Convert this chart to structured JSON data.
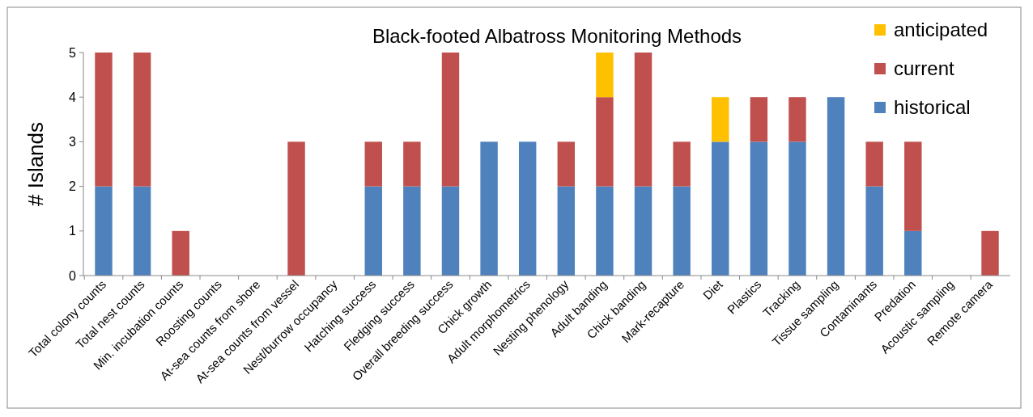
{
  "chart_data": {
    "type": "bar",
    "title": "Black-footed Albatross Monitoring Methods",
    "ylabel": "# Islands",
    "stacked": true,
    "legend": "top right",
    "categories": [
      "Total colony counts",
      "Total nest counts",
      "Min. incubation counts",
      "Roosting counts",
      "At-sea counts from shore",
      "At-sea counts from vessel",
      "Nest/burrow occupancy",
      "Hatching success",
      "Fledging success",
      "Overall breeding success",
      "Chick growth",
      "Adult morphometrics",
      "Nesting phenology",
      "Adult banding",
      "Chick banding",
      "Mark-recapture",
      "Diet",
      "Plastics",
      "Tracking",
      "Tissue sampling",
      "Contaminants",
      "Predation",
      "Acoustic sampling",
      "Remote camera"
    ],
    "series": [
      {
        "name": "historical",
        "color": "#4f81bd",
        "values": [
          2,
          2,
          0,
          0,
          0,
          0,
          0,
          2,
          2,
          2,
          3,
          3,
          2,
          2,
          2,
          2,
          3,
          3,
          3,
          4,
          2,
          1,
          0,
          0
        ]
      },
      {
        "name": "current",
        "color": "#c0504d",
        "values": [
          3,
          3,
          1,
          0,
          0,
          3,
          0,
          1,
          1,
          3,
          0,
          0,
          1,
          2,
          3,
          1,
          0,
          1,
          1,
          0,
          1,
          2,
          0,
          1
        ]
      },
      {
        "name": "anticipated",
        "color": "#ffc000",
        "values": [
          0,
          0,
          0,
          0,
          0,
          0,
          0,
          0,
          0,
          0,
          0,
          0,
          0,
          1,
          0,
          0,
          1,
          0,
          0,
          0,
          0,
          0,
          0,
          0
        ]
      }
    ],
    "ylim": [
      0,
      5
    ],
    "yticks": [
      0,
      1,
      2,
      3,
      4,
      5
    ]
  }
}
